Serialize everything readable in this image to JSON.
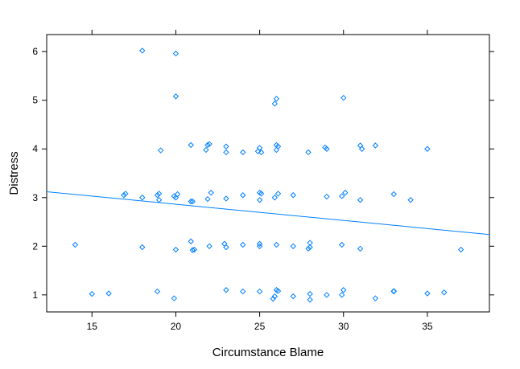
{
  "chart_data": {
    "type": "scatter",
    "title": "",
    "xlabel": "Circumstance Blame",
    "ylabel": "Distress",
    "xlim": [
      12.3,
      38.7
    ],
    "ylim": [
      0.65,
      6.35
    ],
    "x_ticks": [
      15,
      20,
      25,
      30,
      35
    ],
    "y_ticks": [
      1,
      2,
      3,
      4,
      5,
      6
    ],
    "grid": false,
    "legend": "none",
    "point_color": "#0080ff",
    "line_color": "#0080ff",
    "fit_line": {
      "x": [
        12.3,
        38.7
      ],
      "y": [
        3.12,
        2.24
      ]
    },
    "points": [
      {
        "x": 14,
        "y": 2.03
      },
      {
        "x": 15,
        "y": 1.02
      },
      {
        "x": 16,
        "y": 1.03
      },
      {
        "x": 16.9,
        "y": 3.05
      },
      {
        "x": 17,
        "y": 3.08
      },
      {
        "x": 18,
        "y": 6.02
      },
      {
        "x": 18,
        "y": 3.0
      },
      {
        "x": 18,
        "y": 1.98
      },
      {
        "x": 18.9,
        "y": 3.05
      },
      {
        "x": 19,
        "y": 2.95
      },
      {
        "x": 19,
        "y": 3.08
      },
      {
        "x": 19.1,
        "y": 3.97
      },
      {
        "x": 18.9,
        "y": 1.07
      },
      {
        "x": 20,
        "y": 5.96
      },
      {
        "x": 20,
        "y": 5.08
      },
      {
        "x": 20,
        "y": 3.0
      },
      {
        "x": 20.1,
        "y": 3.07
      },
      {
        "x": 19.9,
        "y": 3.03
      },
      {
        "x": 20,
        "y": 1.93
      },
      {
        "x": 19.9,
        "y": 0.93
      },
      {
        "x": 20.9,
        "y": 4.08
      },
      {
        "x": 20.9,
        "y": 2.92
      },
      {
        "x": 21,
        "y": 2.92
      },
      {
        "x": 20.9,
        "y": 2.1
      },
      {
        "x": 21,
        "y": 1.92
      },
      {
        "x": 21.1,
        "y": 1.93
      },
      {
        "x": 21.9,
        "y": 4.08
      },
      {
        "x": 22,
        "y": 4.1
      },
      {
        "x": 21.8,
        "y": 3.98
      },
      {
        "x": 22.1,
        "y": 3.1
      },
      {
        "x": 21.9,
        "y": 2.97
      },
      {
        "x": 22,
        "y": 2.0
      },
      {
        "x": 23,
        "y": 4.05
      },
      {
        "x": 23,
        "y": 3.93
      },
      {
        "x": 23,
        "y": 2.98
      },
      {
        "x": 22.9,
        "y": 2.05
      },
      {
        "x": 23,
        "y": 1.98
      },
      {
        "x": 23,
        "y": 1.1
      },
      {
        "x": 24,
        "y": 3.93
      },
      {
        "x": 24,
        "y": 3.05
      },
      {
        "x": 24,
        "y": 2.03
      },
      {
        "x": 24,
        "y": 1.07
      },
      {
        "x": 25,
        "y": 4.02
      },
      {
        "x": 24.9,
        "y": 3.95
      },
      {
        "x": 25.1,
        "y": 3.93
      },
      {
        "x": 25,
        "y": 3.1
      },
      {
        "x": 25.1,
        "y": 3.08
      },
      {
        "x": 25,
        "y": 2.95
      },
      {
        "x": 25,
        "y": 2.05
      },
      {
        "x": 25,
        "y": 2.0
      },
      {
        "x": 25,
        "y": 1.07
      },
      {
        "x": 26,
        "y": 5.03
      },
      {
        "x": 25.9,
        "y": 4.93
      },
      {
        "x": 26,
        "y": 4.08
      },
      {
        "x": 26.1,
        "y": 4.05
      },
      {
        "x": 26,
        "y": 3.98
      },
      {
        "x": 26.1,
        "y": 3.08
      },
      {
        "x": 25.9,
        "y": 3.0
      },
      {
        "x": 26,
        "y": 2.03
      },
      {
        "x": 26,
        "y": 1.1
      },
      {
        "x": 26.1,
        "y": 1.08
      },
      {
        "x": 25.9,
        "y": 0.97
      },
      {
        "x": 25.8,
        "y": 0.92
      },
      {
        "x": 27,
        "y": 3.05
      },
      {
        "x": 27,
        "y": 2.0
      },
      {
        "x": 27,
        "y": 0.97
      },
      {
        "x": 27.9,
        "y": 3.93
      },
      {
        "x": 28,
        "y": 2.07
      },
      {
        "x": 28,
        "y": 1.98
      },
      {
        "x": 27.9,
        "y": 1.95
      },
      {
        "x": 28,
        "y": 1.02
      },
      {
        "x": 28,
        "y": 0.9
      },
      {
        "x": 28.9,
        "y": 4.03
      },
      {
        "x": 29,
        "y": 4.0
      },
      {
        "x": 29,
        "y": 3.02
      },
      {
        "x": 29,
        "y": 1.0
      },
      {
        "x": 30,
        "y": 5.05
      },
      {
        "x": 29.9,
        "y": 3.03
      },
      {
        "x": 30.1,
        "y": 3.1
      },
      {
        "x": 29.9,
        "y": 2.03
      },
      {
        "x": 30,
        "y": 1.1
      },
      {
        "x": 29.9,
        "y": 1.0
      },
      {
        "x": 31,
        "y": 4.07
      },
      {
        "x": 31.1,
        "y": 4.0
      },
      {
        "x": 31,
        "y": 2.95
      },
      {
        "x": 31,
        "y": 1.95
      },
      {
        "x": 31.9,
        "y": 4.07
      },
      {
        "x": 31.9,
        "y": 0.93
      },
      {
        "x": 33,
        "y": 3.07
      },
      {
        "x": 33,
        "y": 1.08
      },
      {
        "x": 33,
        "y": 1.07
      },
      {
        "x": 34,
        "y": 2.95
      },
      {
        "x": 35,
        "y": 4.0
      },
      {
        "x": 35,
        "y": 1.03
      },
      {
        "x": 36,
        "y": 1.05
      },
      {
        "x": 37,
        "y": 1.93
      }
    ]
  }
}
